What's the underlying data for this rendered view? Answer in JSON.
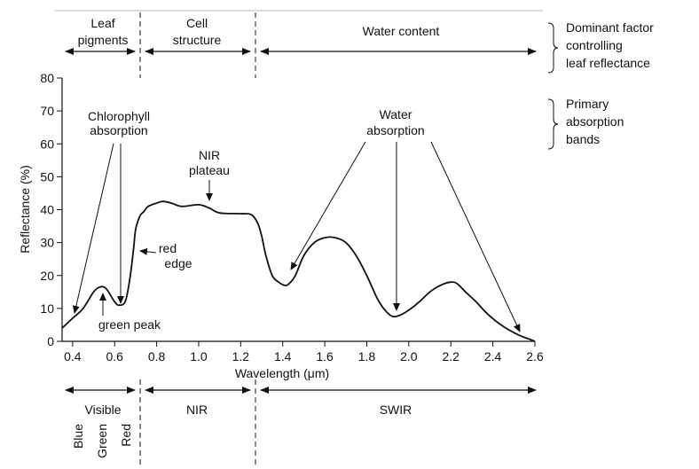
{
  "chart_data": {
    "type": "line",
    "title": "",
    "xlabel": "Wavelength (μm)",
    "ylabel": "Reflectance (%)",
    "xlim": [
      0.35,
      2.6
    ],
    "ylim": [
      0,
      80
    ],
    "x_ticks": [
      "0.4",
      "0.6",
      "0.8",
      "1.0",
      "1.2",
      "1.4",
      "1.6",
      "1.8",
      "2.0",
      "2.2",
      "2.4",
      "2.6"
    ],
    "y_ticks": [
      "0",
      "10",
      "20",
      "30",
      "40",
      "50",
      "60",
      "70",
      "80"
    ],
    "grid": false,
    "series": [
      {
        "x": [
          0.35,
          0.4,
          0.45,
          0.5,
          0.53,
          0.56,
          0.6,
          0.62,
          0.65,
          0.67,
          0.69,
          0.7,
          0.72,
          0.74,
          0.76,
          0.8,
          0.83,
          0.87,
          0.92,
          1.0,
          1.05,
          1.1,
          1.2,
          1.25,
          1.28,
          1.3,
          1.32,
          1.35,
          1.38,
          1.41,
          1.43,
          1.46,
          1.5,
          1.55,
          1.6,
          1.65,
          1.7,
          1.75,
          1.8,
          1.85,
          1.88,
          1.91,
          1.93,
          1.96,
          2.0,
          2.05,
          2.1,
          2.15,
          2.2,
          2.23,
          2.27,
          2.32,
          2.38,
          2.45,
          2.52,
          2.58,
          2.6
        ],
        "y": [
          4,
          7,
          10,
          15,
          16.5,
          16,
          12,
          11,
          12,
          18,
          28,
          34,
          38,
          39.5,
          41,
          42,
          42.5,
          42,
          41,
          41.5,
          40.5,
          39,
          38.8,
          38.5,
          36,
          32,
          26,
          20,
          18,
          17,
          17.5,
          20,
          26,
          30,
          31.5,
          31.5,
          30,
          26,
          20,
          13,
          10,
          8,
          7.5,
          8,
          9.5,
          12,
          15,
          17,
          18,
          17.5,
          15,
          12,
          8,
          4.5,
          2,
          0.5,
          0
        ]
      }
    ],
    "annotations": {
      "chlorophyll": [
        "Chlorophyll",
        "absorption"
      ],
      "nir_plateau": [
        "NIR",
        "plateau"
      ],
      "water_absorption": [
        "Water",
        "absorption"
      ],
      "red_edge": [
        "red",
        "edge"
      ],
      "green_peak": "green peak"
    },
    "top_regions": {
      "leaf_pigments": [
        "Leaf",
        "pigments"
      ],
      "cell_structure": [
        "Cell",
        "structure"
      ],
      "water_content": "Water content"
    },
    "right_notes": {
      "dominant_factor": [
        "Dominant factor",
        "controlling",
        "leaf reflectance"
      ],
      "primary_bands": [
        "Primary",
        "absorption",
        "bands"
      ]
    },
    "bottom_regions": {
      "visible": "Visible",
      "nir": "NIR",
      "swir": "SWIR",
      "colors": [
        "Blue",
        "Green",
        "Red"
      ]
    }
  }
}
